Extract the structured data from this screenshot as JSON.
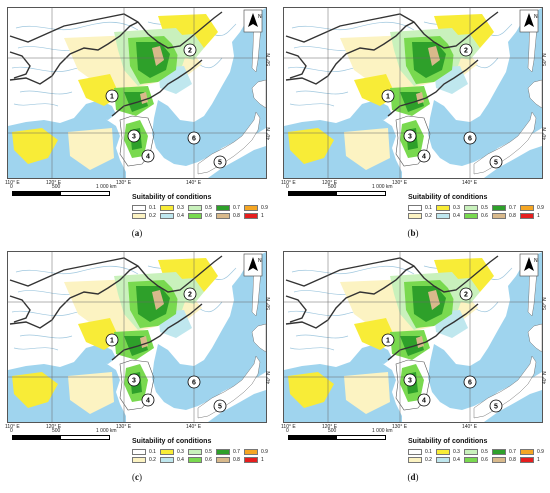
{
  "colors": {
    "sea": "#9fd4ee",
    "land": "#ffffff",
    "border": "#333333",
    "river": "#9fc7de",
    "grid": "#666666",
    "s01": "#ffffff",
    "s02": "#fcf3c2",
    "s03": "#f8ec37",
    "s04": "#bfe7ee",
    "s05": "#c9f1bc",
    "s06": "#79d94f",
    "s07": "#2ea02a",
    "s08": "#d8b98b",
    "s09": "#f5a623",
    "s10": "#e61e1e"
  },
  "legend": {
    "title": "Suitability of conditions",
    "items": [
      {
        "label": "0.1",
        "color": "#ffffff"
      },
      {
        "label": "0.2",
        "color": "#fcf3c2"
      },
      {
        "label": "0.3",
        "color": "#f8ec37"
      },
      {
        "label": "0.4",
        "color": "#bfe7ee"
      },
      {
        "label": "0.5",
        "color": "#c9f1bc"
      },
      {
        "label": "0.6",
        "color": "#79d94f"
      },
      {
        "label": "0.7",
        "color": "#2ea02a"
      },
      {
        "label": "0.8",
        "color": "#d8b98b"
      },
      {
        "label": "0.9",
        "color": "#f5a623"
      },
      {
        "label": "1",
        "color": "#e61e1e"
      }
    ]
  },
  "axes": {
    "lon_labels": [
      "110° E",
      "120° E",
      "130° E",
      "140° E"
    ],
    "lat_labels": [
      "50° N",
      "40° N"
    ]
  },
  "scale": {
    "labels": [
      "0",
      "500",
      "1 000 km"
    ]
  },
  "north_symbol": "N",
  "region_labels": [
    "1",
    "2",
    "3",
    "4",
    "5",
    "6"
  ],
  "panels": [
    {
      "caption": "(a)"
    },
    {
      "caption": "(b)"
    },
    {
      "caption": "(c)"
    },
    {
      "caption": "(d)"
    }
  ]
}
